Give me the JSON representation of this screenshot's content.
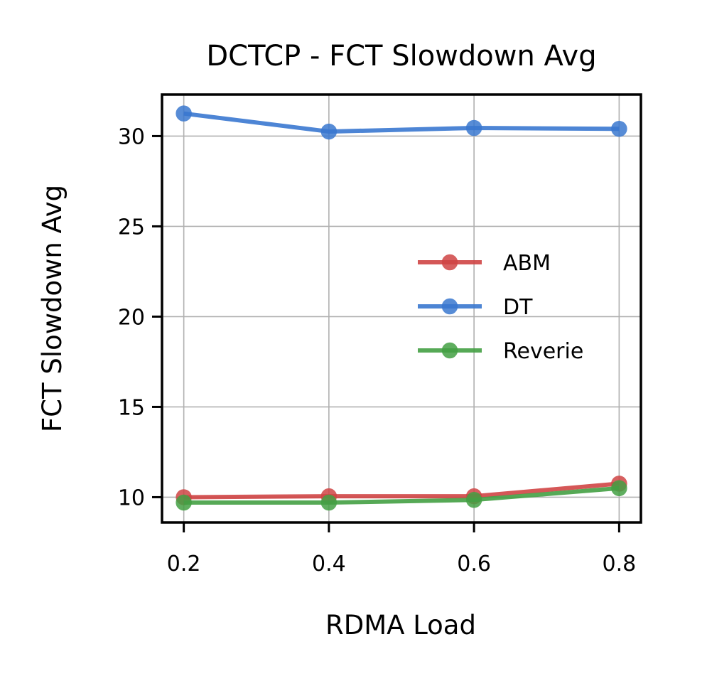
{
  "chart_data": {
    "type": "line",
    "title": "DCTCP - FCT Slowdown Avg",
    "xlabel": "RDMA Load",
    "ylabel": "FCT Slowdown Avg",
    "x": [
      0.2,
      0.4,
      0.6,
      0.8
    ],
    "x_tick_labels": [
      "0.2",
      "0.4",
      "0.6",
      "0.8"
    ],
    "xlim": [
      0.17,
      0.83
    ],
    "y_ticks": [
      10,
      15,
      20,
      25,
      30
    ],
    "y_tick_labels": [
      "10",
      "15",
      "20",
      "25",
      "30"
    ],
    "ylim": [
      8.6,
      32.3
    ],
    "grid": true,
    "legend_position": "center-right",
    "series": [
      {
        "name": "ABM",
        "color": "#d04545",
        "values": [
          10.0,
          10.05,
          10.05,
          10.75
        ]
      },
      {
        "name": "DT",
        "color": "#3a78d0",
        "values": [
          31.25,
          30.25,
          30.45,
          30.4
        ]
      },
      {
        "name": "Reverie",
        "color": "#44a044",
        "values": [
          9.7,
          9.7,
          9.85,
          10.5
        ]
      }
    ]
  }
}
